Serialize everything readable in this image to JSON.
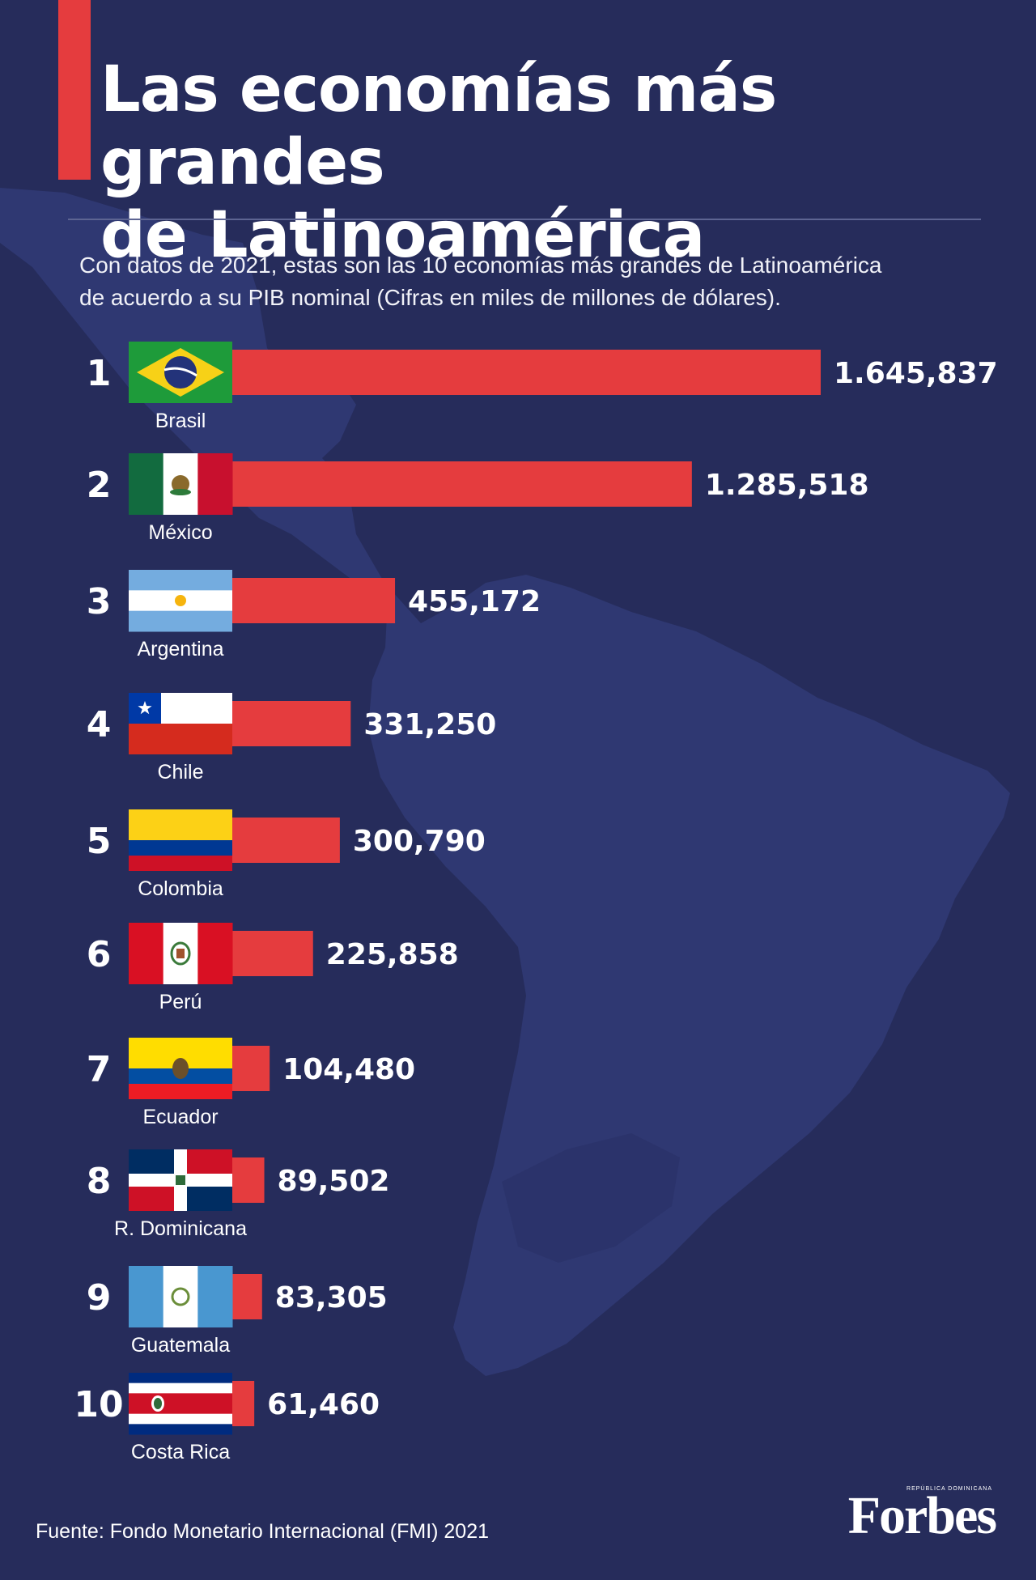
{
  "title_lines": [
    "Las economías más grandes",
    "de Latinoamérica"
  ],
  "subtitle_lines": [
    "Con datos de 2021, estas son las 10 economías más grandes de Latinoamérica",
    "de acuerdo a su PIB nominal (Cifras en miles de millones de dólares)."
  ],
  "source": "Fuente: Fondo Monetario Internacional (FMI) 2021",
  "brand": {
    "small": "REPÚBLICA DOMINICANA",
    "logo": "Forbes"
  },
  "colors": {
    "background": "#262c5b",
    "bar": "#e53c3e",
    "map": "#2f3872",
    "text": "#ffffff"
  },
  "chart_data": {
    "type": "bar",
    "orientation": "horizontal",
    "ranks": [
      "1",
      "2",
      "3",
      "4",
      "5",
      "6",
      "7",
      "8",
      "9",
      "10"
    ],
    "categories": [
      "Brasil",
      "México",
      "Argentina",
      "Chile",
      "Colombia",
      "Perú",
      "Ecuador",
      "R. Dominicana",
      "Guatemala",
      "Costa Rica"
    ],
    "values": [
      1645837,
      1285518,
      455172,
      331250,
      300790,
      225858,
      104480,
      89502,
      83305,
      61460
    ],
    "value_labels": [
      "1.645,837",
      "1.285,518",
      "455,172",
      "331,250",
      "300,790",
      "225,858",
      "104,480",
      "89,502",
      "83,305",
      "61,460"
    ],
    "flag_icons": [
      "brazil-flag-icon",
      "mexico-flag-icon",
      "argentina-flag-icon",
      "chile-flag-icon",
      "colombia-flag-icon",
      "peru-flag-icon",
      "ecuador-flag-icon",
      "dominican-republic-flag-icon",
      "guatemala-flag-icon",
      "costa-rica-flag-icon"
    ],
    "grid": false,
    "legend": "none"
  }
}
